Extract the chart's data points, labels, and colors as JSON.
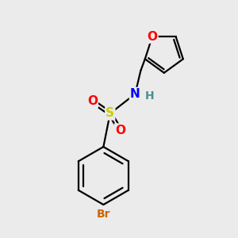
{
  "background_color": "#ebebeb",
  "atom_colors": {
    "C": "#000000",
    "H": "#4a9090",
    "N": "#0000ff",
    "O": "#ff0000",
    "S": "#cccc00",
    "Br": "#cc6600"
  },
  "bond_color": "#000000",
  "bond_width": 1.6,
  "font_size": 10,
  "figsize": [
    3.0,
    3.0
  ],
  "dpi": 100,
  "xlim": [
    -1.0,
    1.4
  ],
  "ylim": [
    -2.8,
    1.4
  ]
}
